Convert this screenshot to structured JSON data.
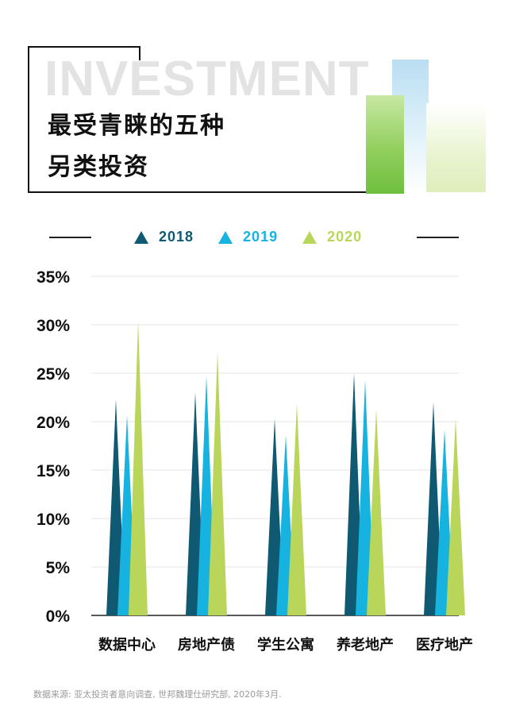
{
  "header": {
    "watermark": "INVESTMENT",
    "title_line1": "最受青睐的五种",
    "title_line2": "另类投资"
  },
  "legend": [
    {
      "label": "2018",
      "color": "#0f5a72"
    },
    {
      "label": "2019",
      "color": "#16b3e0"
    },
    {
      "label": "2020",
      "color": "#b9d65a"
    }
  ],
  "source": "数据来源: 亚太投资者意向调查, 世邦魏理仕研究部, 2020年3月.",
  "chart_data": {
    "type": "bar",
    "categories": [
      "数据中心",
      "房地产债",
      "学生公寓",
      "养老地产",
      "医疗地产"
    ],
    "series": [
      {
        "name": "2018",
        "color": "#0f5a72",
        "values": [
          22.3,
          23.0,
          20.3,
          25.0,
          22.0
        ]
      },
      {
        "name": "2019",
        "color": "#16b3e0",
        "values": [
          20.7,
          24.7,
          18.6,
          24.3,
          19.2
        ]
      },
      {
        "name": "2020",
        "color": "#b9d65a",
        "values": [
          30.4,
          27.2,
          21.9,
          21.3,
          20.3
        ]
      }
    ],
    "y_ticks": [
      "0%",
      "5%",
      "10%",
      "15%",
      "20%",
      "25%",
      "30%",
      "35%"
    ],
    "ylim": [
      0,
      35
    ],
    "grid": true,
    "legend_position": "top"
  }
}
